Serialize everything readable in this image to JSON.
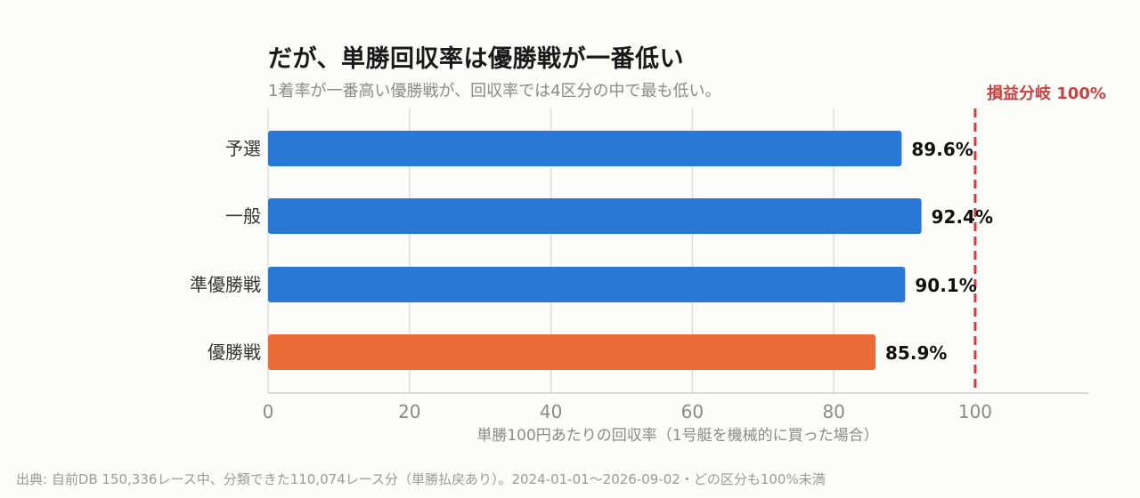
{
  "title": "だが、単勝回収率は優勝戦が一番低い",
  "subtitle": "1着率が一番高い優勝戦が、回収率では4区分の中で最も低い。",
  "source": "出典: 自前DB 150,336レース中、分類できた110,074レース分（単勝払戻あり）。2024-01-01〜2026-09-02・どの区分も100%未満",
  "colors": {
    "bar_default": "#2a78d6",
    "bar_highlight": "#ec6a35",
    "reference_line": "#c8433f",
    "grid": "#dddddd",
    "axis_text": "#8a8a8a"
  },
  "chart_data": {
    "type": "bar",
    "orientation": "horizontal",
    "categories": [
      "予選",
      "一般",
      "準優勝戦",
      "優勝戦"
    ],
    "values": [
      89.6,
      92.4,
      90.1,
      85.9
    ],
    "value_labels": [
      "89.6%",
      "92.4%",
      "90.1%",
      "85.9%"
    ],
    "highlight_index": 3,
    "xlabel": "単勝100円あたりの回収率（1号艇を機械的に買った場合）",
    "xlim": [
      0,
      116
    ],
    "xticks": [
      0,
      20,
      40,
      60,
      80,
      100
    ],
    "grid": true,
    "reference_line": {
      "value": 100,
      "label": "損益分岐 100%",
      "style": "dashed"
    }
  }
}
